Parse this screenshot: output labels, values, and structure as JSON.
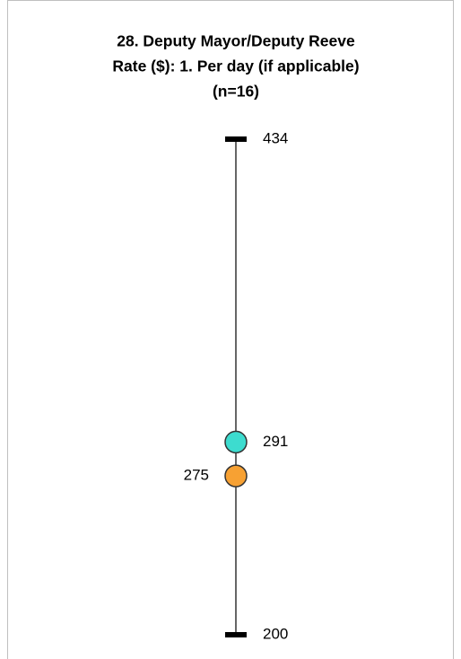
{
  "chart_data": {
    "type": "range",
    "title": [
      "28. Deputy Mayor/Deputy Reeve",
      "Rate ($): 1. Per day (if applicable)",
      "(n=16)"
    ],
    "low": 200,
    "high": 434,
    "points": [
      {
        "value": 291,
        "color": "#3ddccf"
      },
      {
        "value": 275,
        "color": "#f7a133"
      }
    ],
    "ylim": [
      200,
      434
    ]
  }
}
